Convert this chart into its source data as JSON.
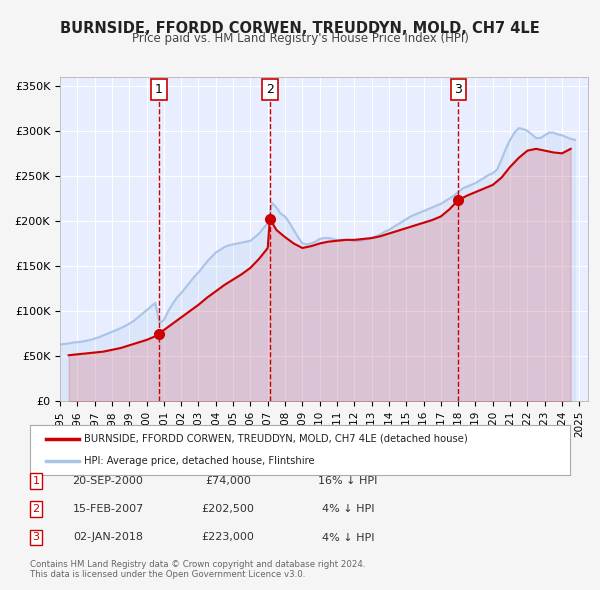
{
  "title": "BURNSIDE, FFORDD CORWEN, TREUDDYN, MOLD, CH7 4LE",
  "subtitle": "Price paid vs. HM Land Registry's House Price Index (HPI)",
  "bg_color": "#f0f4ff",
  "plot_bg_color": "#e8eeff",
  "grid_color": "#ffffff",
  "xlabel": "",
  "ylabel": "",
  "ylim": [
    0,
    360000
  ],
  "yticks": [
    0,
    50000,
    100000,
    150000,
    200000,
    250000,
    300000,
    350000
  ],
  "ytick_labels": [
    "£0",
    "£50K",
    "£100K",
    "£150K",
    "£200K",
    "£250K",
    "£300K",
    "£350K"
  ],
  "xmin": 1995.0,
  "xmax": 2025.5,
  "xticks": [
    1995,
    1996,
    1997,
    1998,
    1999,
    2000,
    2001,
    2002,
    2003,
    2004,
    2005,
    2006,
    2007,
    2008,
    2009,
    2010,
    2011,
    2012,
    2013,
    2014,
    2015,
    2016,
    2017,
    2018,
    2019,
    2020,
    2021,
    2022,
    2023,
    2024,
    2025
  ],
  "sale_color": "#cc0000",
  "hpi_color": "#aac4e8",
  "sale_label": "BURNSIDE, FFORDD CORWEN, TREUDDYN, MOLD, CH7 4LE (detached house)",
  "hpi_label": "HPI: Average price, detached house, Flintshire",
  "transactions": [
    {
      "date": 2000.72,
      "price": 74000,
      "label": "1"
    },
    {
      "date": 2007.12,
      "price": 202500,
      "label": "2"
    },
    {
      "date": 2018.01,
      "price": 223000,
      "label": "3"
    }
  ],
  "vline_color": "#cc0000",
  "vline_style": "dashed",
  "table_rows": [
    {
      "num": "1",
      "date": "20-SEP-2000",
      "price": "£74,000",
      "hpi": "16% ↓ HPI"
    },
    {
      "num": "2",
      "date": "15-FEB-2007",
      "price": "£202,500",
      "hpi": "4% ↓ HPI"
    },
    {
      "num": "3",
      "date": "02-JAN-2018",
      "price": "£223,000",
      "hpi": "4% ↓ HPI"
    }
  ],
  "footer": "Contains HM Land Registry data © Crown copyright and database right 2024.\nThis data is licensed under the Open Government Licence v3.0.",
  "hpi_data_x": [
    1995.0,
    1995.25,
    1995.5,
    1995.75,
    1996.0,
    1996.25,
    1996.5,
    1996.75,
    1997.0,
    1997.25,
    1997.5,
    1997.75,
    1998.0,
    1998.25,
    1998.5,
    1998.75,
    1999.0,
    1999.25,
    1999.5,
    1999.75,
    2000.0,
    2000.25,
    2000.5,
    2000.75,
    2001.0,
    2001.25,
    2001.5,
    2001.75,
    2002.0,
    2002.25,
    2002.5,
    2002.75,
    2003.0,
    2003.25,
    2003.5,
    2003.75,
    2004.0,
    2004.25,
    2004.5,
    2004.75,
    2005.0,
    2005.25,
    2005.5,
    2005.75,
    2006.0,
    2006.25,
    2006.5,
    2006.75,
    2007.0,
    2007.25,
    2007.5,
    2007.75,
    2008.0,
    2008.25,
    2008.5,
    2008.75,
    2009.0,
    2009.25,
    2009.5,
    2009.75,
    2010.0,
    2010.25,
    2010.5,
    2010.75,
    2011.0,
    2011.25,
    2011.5,
    2011.75,
    2012.0,
    2012.25,
    2012.5,
    2012.75,
    2013.0,
    2013.25,
    2013.5,
    2013.75,
    2014.0,
    2014.25,
    2014.5,
    2014.75,
    2015.0,
    2015.25,
    2015.5,
    2015.75,
    2016.0,
    2016.25,
    2016.5,
    2016.75,
    2017.0,
    2017.25,
    2017.5,
    2017.75,
    2018.0,
    2018.25,
    2018.5,
    2018.75,
    2019.0,
    2019.25,
    2019.5,
    2019.75,
    2020.0,
    2020.25,
    2020.5,
    2020.75,
    2021.0,
    2021.25,
    2021.5,
    2021.75,
    2022.0,
    2022.25,
    2022.5,
    2022.75,
    2023.0,
    2023.25,
    2023.5,
    2023.75,
    2024.0,
    2024.25,
    2024.5,
    2024.75
  ],
  "hpi_data_y": [
    63000,
    63500,
    64000,
    65000,
    65500,
    66000,
    67000,
    68000,
    69500,
    71000,
    73000,
    75000,
    77000,
    79000,
    81000,
    83500,
    86000,
    89000,
    93000,
    97000,
    101000,
    105000,
    109000,
    87000,
    90000,
    100000,
    108000,
    115000,
    120000,
    126000,
    132000,
    138000,
    143000,
    149000,
    155000,
    160000,
    165000,
    168000,
    171000,
    173000,
    174000,
    175000,
    176000,
    177000,
    178000,
    182000,
    186000,
    192000,
    197000,
    220000,
    215000,
    208000,
    205000,
    198000,
    190000,
    182000,
    175000,
    174000,
    175000,
    177000,
    180000,
    181000,
    181000,
    180000,
    179000,
    179000,
    179000,
    179000,
    178000,
    178000,
    179000,
    180000,
    181000,
    183000,
    185000,
    188000,
    190000,
    193000,
    196000,
    199000,
    202000,
    205000,
    207000,
    209000,
    211000,
    213000,
    215000,
    217000,
    219000,
    222000,
    225000,
    228000,
    232000,
    236000,
    238000,
    240000,
    242000,
    245000,
    248000,
    251000,
    253000,
    257000,
    268000,
    280000,
    290000,
    298000,
    303000,
    302000,
    300000,
    296000,
    292000,
    292000,
    295000,
    298000,
    298000,
    296000,
    295000,
    293000,
    291000,
    290000
  ],
  "sale_data_x": [
    1995.5,
    1996.0,
    1996.5,
    1997.0,
    1997.5,
    1998.0,
    1998.5,
    1999.0,
    1999.5,
    2000.0,
    2000.5,
    2000.75,
    2001.0,
    2001.5,
    2002.0,
    2002.5,
    2003.0,
    2003.5,
    2004.0,
    2004.5,
    2005.0,
    2005.5,
    2006.0,
    2006.5,
    2007.0,
    2007.12,
    2007.5,
    2008.0,
    2008.5,
    2009.0,
    2009.5,
    2010.0,
    2010.5,
    2011.0,
    2011.5,
    2012.0,
    2012.5,
    2013.0,
    2013.5,
    2014.0,
    2014.5,
    2015.0,
    2015.5,
    2016.0,
    2016.5,
    2017.0,
    2017.5,
    2018.0,
    2018.01,
    2018.5,
    2019.0,
    2019.5,
    2020.0,
    2020.5,
    2021.0,
    2021.5,
    2022.0,
    2022.5,
    2023.0,
    2023.5,
    2024.0,
    2024.5
  ],
  "sale_data_y": [
    51000,
    52000,
    53000,
    54000,
    55000,
    57000,
    59000,
    62000,
    65000,
    68000,
    72000,
    74000,
    79000,
    86000,
    93000,
    100000,
    107000,
    115000,
    122000,
    129000,
    135000,
    141000,
    148000,
    158000,
    170000,
    202500,
    190000,
    182000,
    175000,
    170000,
    172000,
    175000,
    177000,
    178000,
    179000,
    179000,
    180000,
    181000,
    183000,
    186000,
    189000,
    192000,
    195000,
    198000,
    201000,
    205000,
    213000,
    223000,
    223000,
    228000,
    232000,
    236000,
    240000,
    248000,
    260000,
    270000,
    278000,
    280000,
    278000,
    276000,
    275000,
    280000
  ]
}
